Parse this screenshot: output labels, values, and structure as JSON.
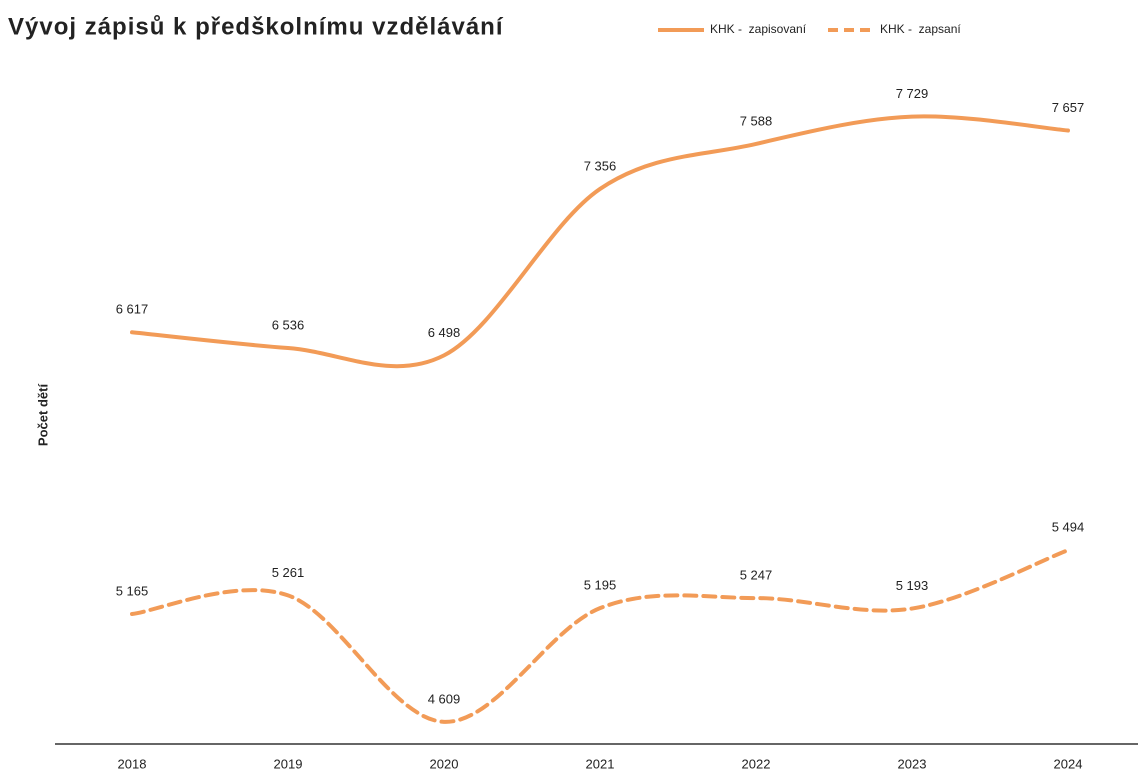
{
  "chart_data": {
    "type": "line",
    "title": "Vývoj zápisů k předškolnímu vzdělávání",
    "ylabel": "Počet dětí",
    "categories": [
      "2018",
      "2019",
      "2020",
      "2021",
      "2022",
      "2023",
      "2024"
    ],
    "series": [
      {
        "name": "KHK -  zapisovaní",
        "color": "#f29b57",
        "dash": false,
        "values": [
          6617,
          6536,
          6498,
          7356,
          7588,
          7729,
          7657
        ],
        "value_labels": [
          "6 617",
          "6 536",
          "6 498",
          "7 356",
          "7 588",
          "7 729",
          "7 657"
        ]
      },
      {
        "name": "KHK -  zapsaní",
        "color": "#f29b57",
        "dash": true,
        "values": [
          5165,
          5261,
          4609,
          5195,
          5247,
          5193,
          5494
        ],
        "value_labels": [
          "5 165",
          "5 261",
          "4 609",
          "5 195",
          "5 247",
          "5 193",
          "5 494"
        ]
      }
    ],
    "ylim": [
      4500,
      8000
    ],
    "legend": "top-right"
  }
}
